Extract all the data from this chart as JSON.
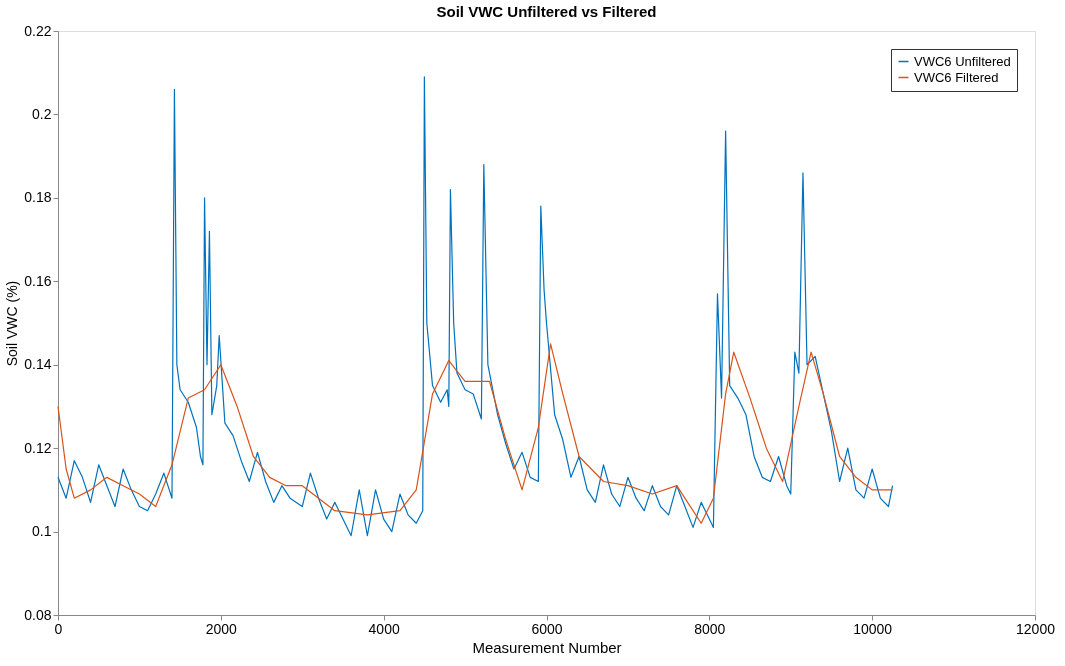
{
  "chart_data": {
    "type": "line",
    "title": "Soil VWC Unfiltered vs Filtered",
    "xlabel": "Measurement Number",
    "ylabel": "Soil VWC (%)",
    "xlim": [
      0,
      12000
    ],
    "xticks": [
      0,
      2000,
      4000,
      6000,
      8000,
      10000,
      12000
    ],
    "ylim": [
      0.08,
      0.22
    ],
    "yticks": [
      0.08,
      0.1,
      0.12,
      0.14,
      0.16,
      0.18,
      0.2,
      0.22
    ],
    "grid": false,
    "legend": "top right",
    "series": [
      {
        "name": "VWC6 Unfiltered",
        "color": "#0072bd",
        "x": [
          0,
          100,
          200,
          300,
          400,
          500,
          600,
          700,
          800,
          900,
          1000,
          1100,
          1200,
          1300,
          1400,
          1430,
          1460,
          1500,
          1600,
          1700,
          1750,
          1780,
          1800,
          1830,
          1860,
          1890,
          1950,
          1980,
          2050,
          2150,
          2250,
          2350,
          2450,
          2550,
          2650,
          2750,
          2850,
          3000,
          3100,
          3200,
          3300,
          3400,
          3500,
          3600,
          3700,
          3800,
          3900,
          4000,
          4100,
          4200,
          4300,
          4400,
          4480,
          4500,
          4530,
          4600,
          4700,
          4780,
          4800,
          4820,
          4860,
          4900,
          5000,
          5100,
          5200,
          5230,
          5280,
          5400,
          5500,
          5600,
          5700,
          5800,
          5900,
          5930,
          5970,
          6000,
          6100,
          6200,
          6300,
          6400,
          6500,
          6600,
          6700,
          6800,
          6900,
          7000,
          7100,
          7200,
          7300,
          7400,
          7500,
          7600,
          7700,
          7800,
          7900,
          8000,
          8050,
          8100,
          8150,
          8200,
          8250,
          8350,
          8450,
          8550,
          8650,
          8750,
          8850,
          8950,
          9000,
          9050,
          9100,
          9150,
          9200,
          9300,
          9400,
          9500,
          9600,
          9700,
          9800,
          9900,
          10000,
          10100,
          10200,
          10250
        ],
        "values": [
          0.113,
          0.108,
          0.117,
          0.113,
          0.107,
          0.116,
          0.111,
          0.106,
          0.115,
          0.11,
          0.106,
          0.105,
          0.109,
          0.114,
          0.108,
          0.206,
          0.14,
          0.134,
          0.131,
          0.125,
          0.118,
          0.116,
          0.18,
          0.14,
          0.172,
          0.128,
          0.135,
          0.147,
          0.126,
          0.123,
          0.117,
          0.112,
          0.119,
          0.112,
          0.107,
          0.111,
          0.108,
          0.106,
          0.114,
          0.108,
          0.103,
          0.107,
          0.103,
          0.099,
          0.11,
          0.099,
          0.11,
          0.103,
          0.1,
          0.109,
          0.104,
          0.102,
          0.105,
          0.209,
          0.15,
          0.135,
          0.131,
          0.134,
          0.13,
          0.182,
          0.15,
          0.138,
          0.134,
          0.133,
          0.127,
          0.188,
          0.14,
          0.128,
          0.121,
          0.115,
          0.119,
          0.113,
          0.112,
          0.178,
          0.158,
          0.15,
          0.128,
          0.122,
          0.113,
          0.118,
          0.11,
          0.107,
          0.116,
          0.109,
          0.106,
          0.113,
          0.108,
          0.105,
          0.111,
          0.106,
          0.104,
          0.111,
          0.106,
          0.101,
          0.107,
          0.103,
          0.101,
          0.157,
          0.132,
          0.196,
          0.135,
          0.132,
          0.128,
          0.118,
          0.113,
          0.112,
          0.118,
          0.111,
          0.109,
          0.143,
          0.138,
          0.186,
          0.14,
          0.142,
          0.133,
          0.124,
          0.112,
          0.12,
          0.11,
          0.108,
          0.115,
          0.108,
          0.106,
          0.111
        ]
      },
      {
        "name": "VWC6 Filtered",
        "color": "#d95319",
        "x": [
          0,
          100,
          200,
          400,
          600,
          800,
          1000,
          1200,
          1400,
          1600,
          1800,
          2000,
          2200,
          2400,
          2600,
          2800,
          3000,
          3200,
          3400,
          3800,
          4200,
          4400,
          4600,
          4800,
          5000,
          5300,
          5500,
          5700,
          5900,
          6050,
          6200,
          6400,
          6700,
          7000,
          7300,
          7600,
          7900,
          8050,
          8200,
          8300,
          8500,
          8700,
          8900,
          9100,
          9250,
          9400,
          9600,
          9800,
          10000,
          10250
        ],
        "values": [
          0.13,
          0.115,
          0.108,
          0.11,
          0.113,
          0.111,
          0.109,
          0.106,
          0.116,
          0.132,
          0.134,
          0.14,
          0.13,
          0.118,
          0.113,
          0.111,
          0.111,
          0.108,
          0.105,
          0.104,
          0.105,
          0.11,
          0.133,
          0.141,
          0.136,
          0.136,
          0.122,
          0.11,
          0.125,
          0.145,
          0.133,
          0.118,
          0.112,
          0.111,
          0.109,
          0.111,
          0.102,
          0.108,
          0.133,
          0.143,
          0.132,
          0.12,
          0.112,
          0.13,
          0.143,
          0.133,
          0.118,
          0.113,
          0.11,
          0.11
        ]
      }
    ]
  }
}
